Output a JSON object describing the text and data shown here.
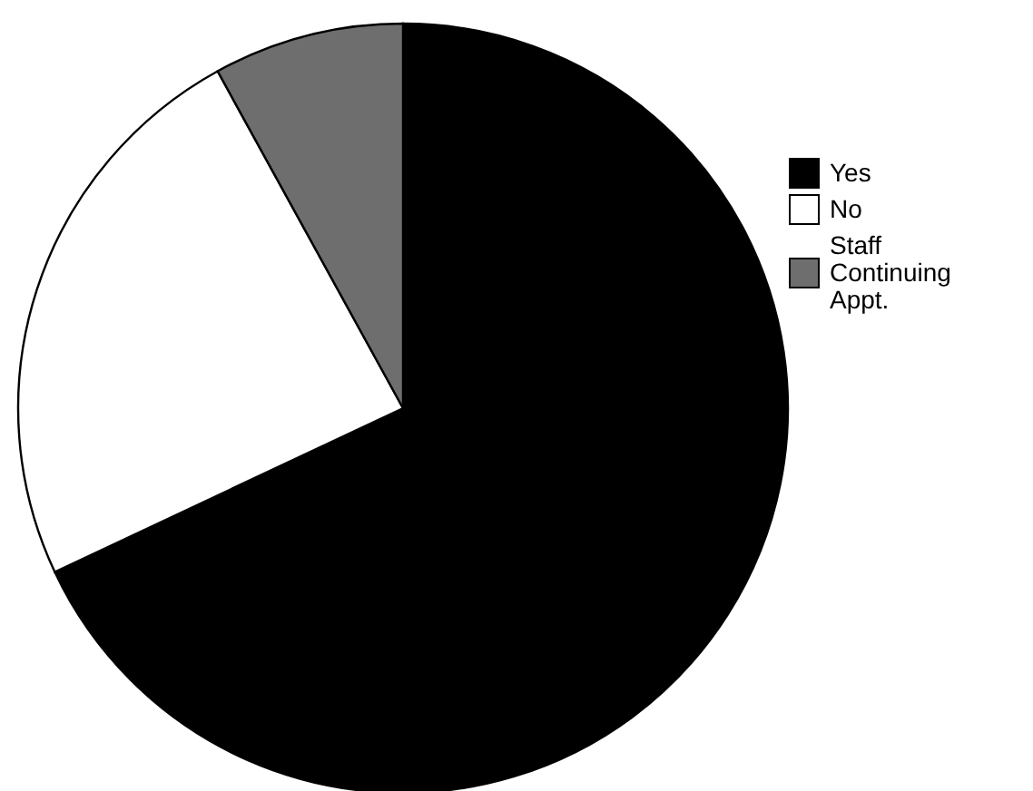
{
  "chart_data": {
    "type": "pie",
    "categories": [
      "Yes",
      "No",
      "Staff Continuing Appt."
    ],
    "values": [
      68,
      24,
      8
    ],
    "colors": [
      "#000000",
      "#ffffff",
      "#6e6e6e"
    ],
    "legend": "right"
  }
}
